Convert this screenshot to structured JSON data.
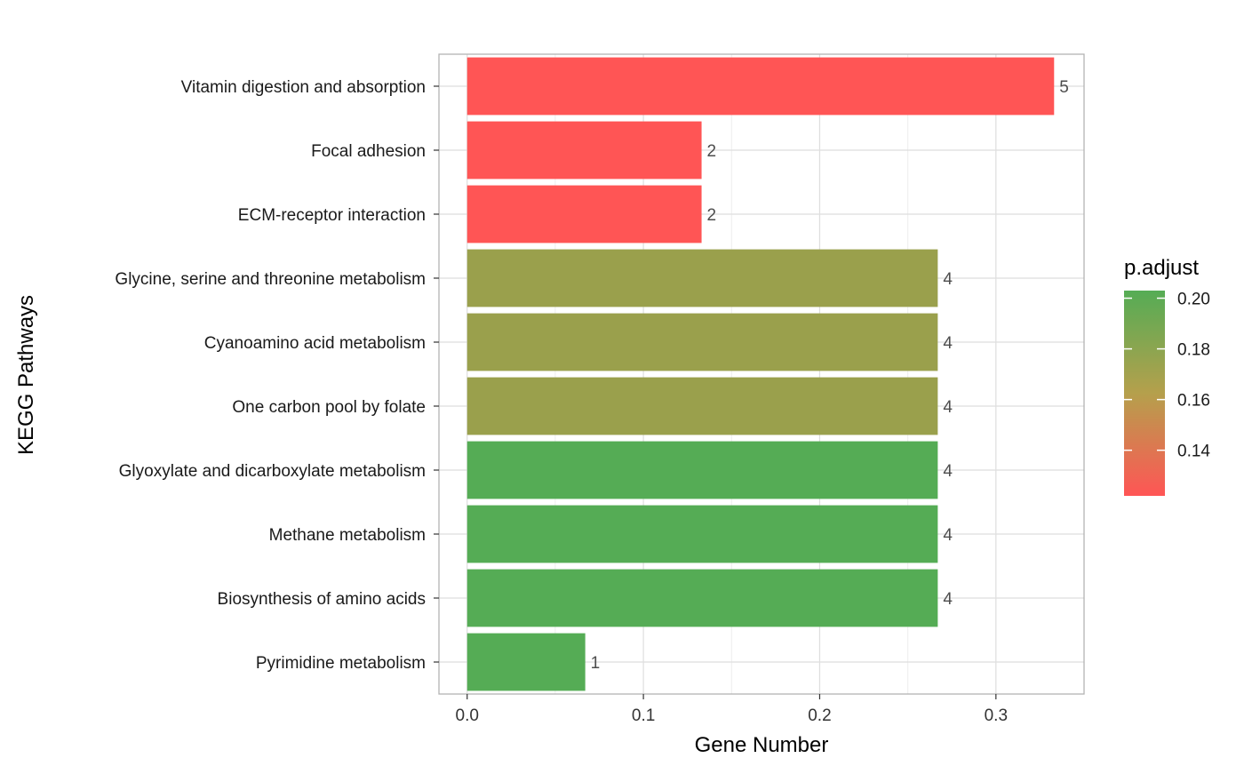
{
  "chart_data": {
    "type": "bar",
    "orientation": "horizontal",
    "title": "",
    "xlabel": "Gene Number",
    "ylabel": "KEGG Pathways",
    "xlim": [
      -0.016,
      0.35
    ],
    "xticks": [
      0.0,
      0.1,
      0.2,
      0.3
    ],
    "xtick_labels": [
      "0.0",
      "0.1",
      "0.2",
      "0.3"
    ],
    "grid": true,
    "categories": [
      "Vitamin digestion and absorption",
      "Focal adhesion",
      "ECM-receptor interaction",
      "Glycine, serine and threonine metabolism",
      "Cyanoamino acid metabolism",
      "One carbon pool by folate",
      "Glyoxylate and dicarboxylate metabolism",
      "Methane metabolism",
      "Biosynthesis of amino acids",
      "Pyrimidine metabolism"
    ],
    "values": [
      0.333,
      0.133,
      0.133,
      0.267,
      0.267,
      0.267,
      0.267,
      0.267,
      0.267,
      0.067
    ],
    "data_labels": [
      "5",
      "2",
      "2",
      "4",
      "4",
      "4",
      "4",
      "4",
      "4",
      "1"
    ],
    "bar_colors": [
      "#ff5555",
      "#ff5555",
      "#ff5555",
      "#9aa04c",
      "#9aa04c",
      "#9aa04c",
      "#55ac55",
      "#55ac55",
      "#55ac55",
      "#55ac55"
    ],
    "legend": {
      "title": "p.adjust",
      "position": "right",
      "type": "colorbar",
      "range": [
        0.122,
        0.203
      ],
      "ticks": [
        0.14,
        0.16,
        0.18,
        0.2
      ],
      "tick_labels": [
        "0.14",
        "0.16",
        "0.18",
        "0.20"
      ],
      "color_low": "#ff5555",
      "color_mid": "#b5a04c",
      "color_high": "#55ac55"
    }
  }
}
